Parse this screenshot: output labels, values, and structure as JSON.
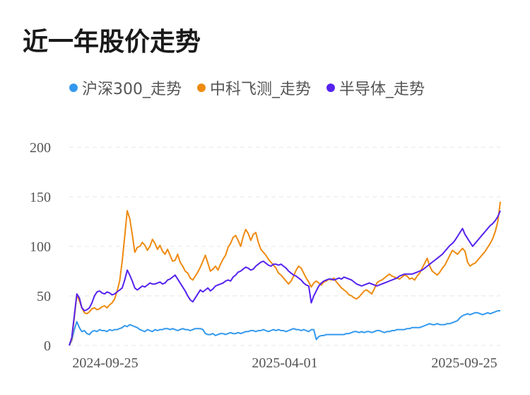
{
  "chart_data": {
    "type": "line",
    "title": "近一年股价走势",
    "xlabel": "",
    "ylabel": "",
    "ylim": [
      0,
      200
    ],
    "y_ticks": [
      0,
      50,
      100,
      150,
      200
    ],
    "x_tick_labels": [
      "2024-09-25",
      "2025-04-01",
      "2025-09-25"
    ],
    "grid": "horizontal-dashed",
    "legend_position": "top",
    "series": [
      {
        "name": "沪深300_走势",
        "color": "#3399ee",
        "values": [
          0,
          5,
          16,
          24,
          18,
          14,
          15,
          12,
          11,
          14,
          15,
          14,
          16,
          15,
          15,
          14,
          16,
          15,
          16,
          16,
          17,
          18,
          20,
          19,
          21,
          20,
          19,
          18,
          16,
          15,
          14,
          16,
          15,
          14,
          16,
          15,
          16,
          16,
          17,
          17,
          16,
          17,
          16,
          15,
          16,
          17,
          16,
          16,
          15,
          16,
          17,
          17,
          17,
          16,
          12,
          11,
          11,
          12,
          10,
          11,
          12,
          12,
          11,
          12,
          13,
          12,
          12,
          13,
          12,
          13,
          14,
          14,
          15,
          15,
          14,
          15,
          15,
          16,
          15,
          14,
          15,
          16,
          15,
          16,
          15,
          15,
          14,
          15,
          16,
          17,
          16,
          16,
          15,
          16,
          15,
          14,
          16,
          16,
          6,
          9,
          10,
          10,
          11,
          11,
          11,
          11,
          11,
          11,
          11,
          11,
          12,
          12,
          13,
          14,
          14,
          13,
          14,
          13,
          14,
          14,
          13,
          14,
          15,
          15,
          14,
          13,
          14,
          14,
          15,
          15,
          16,
          16,
          16,
          16,
          17,
          17,
          18,
          18,
          18,
          18,
          19,
          20,
          21,
          22,
          21,
          21,
          22,
          21,
          21,
          21,
          22,
          22,
          23,
          24,
          25,
          28,
          30,
          31,
          32,
          31,
          32,
          33,
          33,
          32,
          31,
          32,
          33,
          32,
          33,
          34,
          35,
          35
        ]
      },
      {
        "name": "中科飞测_走势",
        "color": "#ee8a10",
        "values": [
          0,
          6,
          28,
          51,
          45,
          38,
          33,
          32,
          34,
          37,
          38,
          36,
          37,
          39,
          40,
          38,
          41,
          43,
          47,
          55,
          65,
          85,
          110,
          136,
          128,
          112,
          94,
          99,
          100,
          104,
          101,
          96,
          100,
          107,
          103,
          97,
          101,
          95,
          92,
          97,
          91,
          85,
          86,
          92,
          84,
          80,
          75,
          73,
          68,
          66,
          70,
          74,
          79,
          85,
          91,
          83,
          75,
          77,
          80,
          76,
          82,
          87,
          91,
          99,
          103,
          109,
          111,
          106,
          100,
          110,
          117,
          113,
          106,
          112,
          114,
          104,
          97,
          94,
          91,
          87,
          84,
          81,
          78,
          73,
          71,
          68,
          65,
          62,
          65,
          70,
          76,
          80,
          78,
          73,
          68,
          64,
          59,
          63,
          65,
          63,
          61,
          64,
          65,
          67,
          66,
          68,
          64,
          61,
          58,
          56,
          54,
          51,
          50,
          48,
          47,
          49,
          52,
          55,
          56,
          54,
          52,
          57,
          63,
          65,
          66,
          68,
          70,
          72,
          70,
          69,
          68,
          67,
          69,
          71,
          70,
          67,
          68,
          66,
          70,
          73,
          78,
          83,
          88,
          80,
          75,
          73,
          71,
          74,
          78,
          81,
          86,
          91,
          96,
          94,
          92,
          95,
          98,
          95,
          84,
          80,
          82,
          83,
          86,
          89,
          92,
          95,
          99,
          103,
          108,
          115,
          125,
          145
        ]
      },
      {
        "name": "半导体_走势",
        "color": "#5522ee",
        "values": [
          0,
          8,
          30,
          52,
          48,
          38,
          35,
          36,
          38,
          43,
          50,
          54,
          55,
          53,
          52,
          54,
          53,
          51,
          52,
          54,
          56,
          58,
          66,
          76,
          71,
          65,
          58,
          56,
          58,
          60,
          59,
          61,
          63,
          62,
          62,
          63,
          64,
          62,
          63,
          66,
          67,
          69,
          71,
          67,
          63,
          59,
          55,
          50,
          46,
          44,
          48,
          52,
          56,
          54,
          56,
          58,
          55,
          57,
          60,
          61,
          62,
          63,
          65,
          66,
          65,
          69,
          71,
          74,
          75,
          77,
          79,
          78,
          76,
          77,
          80,
          82,
          84,
          85,
          83,
          81,
          80,
          82,
          82,
          81,
          82,
          80,
          78,
          75,
          73,
          71,
          70,
          68,
          66,
          63,
          61,
          60,
          43,
          50,
          55,
          60,
          63,
          65,
          66,
          67,
          67,
          66,
          67,
          68,
          67,
          69,
          68,
          67,
          66,
          64,
          62,
          61,
          60,
          61,
          62,
          63,
          62,
          61,
          60,
          61,
          62,
          63,
          64,
          65,
          66,
          67,
          68,
          70,
          71,
          72,
          72,
          72,
          72,
          73,
          74,
          75,
          76,
          78,
          80,
          82,
          84,
          86,
          88,
          90,
          92,
          95,
          98,
          101,
          103,
          106,
          110,
          114,
          118,
          112,
          108,
          104,
          100,
          103,
          106,
          109,
          112,
          115,
          118,
          121,
          123,
          126,
          130,
          136
        ]
      }
    ]
  }
}
